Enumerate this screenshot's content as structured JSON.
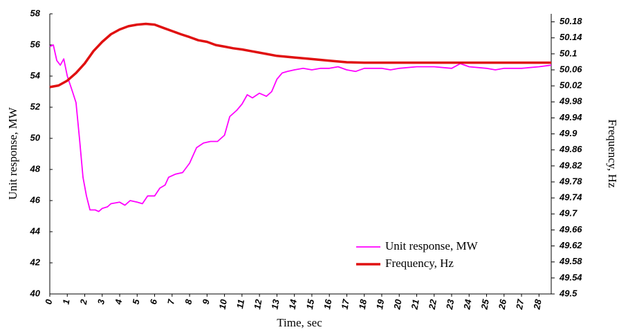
{
  "chart_data": {
    "type": "line",
    "xlabel": "Time, sec",
    "ylabel": "Unit response, MW",
    "y2label": "Frequency, Hz",
    "xlim": [
      0,
      28.7
    ],
    "xticks": [
      0,
      1,
      2,
      3,
      4,
      5,
      6,
      7,
      8,
      9,
      10,
      11,
      12,
      13,
      14,
      15,
      16,
      17,
      18,
      19,
      20,
      21,
      22,
      23,
      24,
      25,
      26,
      27,
      28
    ],
    "ylim": [
      40,
      58
    ],
    "yticks": [
      40,
      42,
      44,
      46,
      48,
      50,
      52,
      54,
      56,
      58
    ],
    "y2lim": [
      49.5,
      50.2
    ],
    "y2ticks": [
      49.5,
      49.54,
      49.58,
      49.62,
      49.66,
      49.7,
      49.74,
      49.78,
      49.82,
      49.86,
      49.9,
      49.94,
      49.98,
      50.02,
      50.06,
      50.1,
      50.14,
      50.18
    ],
    "grid": false,
    "legend": "lower right",
    "series": [
      {
        "name": "Unit response, MW",
        "color": "#ff00ff",
        "axis": "y",
        "x": [
          0,
          0.2,
          0.4,
          0.6,
          0.8,
          1.0,
          1.3,
          1.5,
          1.7,
          1.9,
          2.1,
          2.3,
          2.6,
          2.8,
          3.0,
          3.3,
          3.5,
          4,
          4.3,
          4.6,
          5,
          5.3,
          5.6,
          6,
          6.3,
          6.6,
          6.8,
          7.2,
          7.6,
          8,
          8.4,
          8.8,
          9.2,
          9.6,
          10,
          10.3,
          10.7,
          11,
          11.3,
          11.6,
          12,
          12.4,
          12.7,
          13,
          13.3,
          13.6,
          14,
          14.5,
          15,
          15.5,
          16,
          16.5,
          17,
          17.5,
          18,
          18.5,
          19,
          19.5,
          20,
          21,
          22,
          23,
          23.5,
          24,
          25,
          25.5,
          26,
          27,
          28,
          28.7
        ],
        "values": [
          55.9,
          56.0,
          55.0,
          54.7,
          55.1,
          54.0,
          53.0,
          52.3,
          50.0,
          47.5,
          46.3,
          45.4,
          45.4,
          45.3,
          45.5,
          45.6,
          45.8,
          45.9,
          45.7,
          46.0,
          45.9,
          45.8,
          46.3,
          46.3,
          46.8,
          47.0,
          47.5,
          47.7,
          47.8,
          48.4,
          49.4,
          49.7,
          49.8,
          49.8,
          50.2,
          51.4,
          51.8,
          52.2,
          52.8,
          52.6,
          52.9,
          52.7,
          53.0,
          53.8,
          54.2,
          54.3,
          54.4,
          54.5,
          54.4,
          54.5,
          54.5,
          54.6,
          54.4,
          54.3,
          54.5,
          54.5,
          54.5,
          54.4,
          54.5,
          54.6,
          54.6,
          54.5,
          54.8,
          54.6,
          54.5,
          54.4,
          54.5,
          54.5,
          54.6,
          54.7
        ]
      },
      {
        "name": "Frequency, Hz",
        "color": "#e01010",
        "axis": "y2",
        "x": [
          0,
          0.5,
          1,
          1.5,
          2,
          2.5,
          3,
          3.5,
          4,
          4.5,
          5,
          5.5,
          6,
          6.5,
          7,
          7.5,
          8,
          8.5,
          9,
          9.5,
          10,
          10.5,
          11,
          11.5,
          12,
          13,
          14,
          15,
          16,
          17,
          18,
          20,
          22,
          24,
          26,
          28,
          28.7
        ],
        "values": [
          50.017,
          50.021,
          50.033,
          50.052,
          50.076,
          50.107,
          50.13,
          50.149,
          50.161,
          50.169,
          50.173,
          50.175,
          50.173,
          50.165,
          50.157,
          50.149,
          50.142,
          50.134,
          50.13,
          50.122,
          50.118,
          50.114,
          50.111,
          50.107,
          50.103,
          50.095,
          50.091,
          50.087,
          50.083,
          50.079,
          50.078,
          50.078,
          50.078,
          50.078,
          50.078,
          50.078,
          50.078
        ]
      }
    ]
  }
}
